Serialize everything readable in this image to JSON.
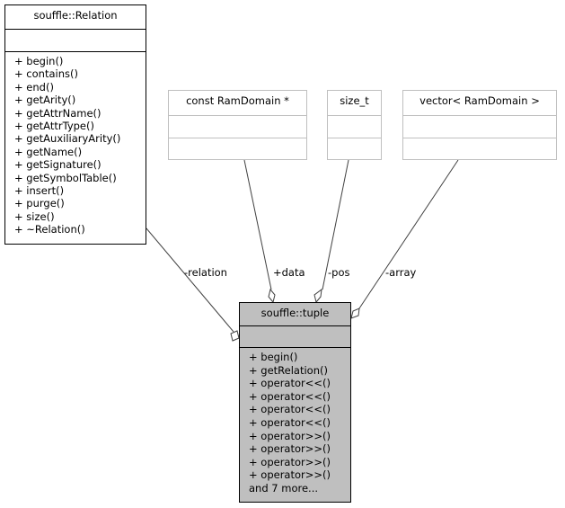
{
  "classes": {
    "relation": {
      "name": "souffle::Relation",
      "methods": [
        "+ begin()",
        "+ contains()",
        "+ end()",
        "+ getArity()",
        "+ getAttrName()",
        "+ getAttrType()",
        "+ getAuxiliaryArity()",
        "+ getName()",
        "+ getSignature()",
        "+ getSymbolTable()",
        "+ insert()",
        "+ purge()",
        "+ size()",
        "+ ~Relation()"
      ]
    },
    "ramdomain_ptr": {
      "name": "const RamDomain *"
    },
    "size_t": {
      "name": "size_t"
    },
    "vector": {
      "name": "vector< RamDomain >"
    },
    "tuple": {
      "name": "souffle::tuple",
      "methods": [
        "+ begin()",
        "+ getRelation()",
        "+ operator<<()",
        "+ operator<<()",
        "+ operator<<()",
        "+ operator<<()",
        "+ operator>>()",
        "+ operator>>()",
        "+ operator>>()",
        "+ operator>>()",
        "and 7 more..."
      ]
    }
  },
  "edges": {
    "relation": "-relation",
    "data": "+data",
    "pos": "-pos",
    "array": "-array"
  },
  "colors": {
    "line": "#404040",
    "muted_border": "#bfbfbf",
    "focus_fill": "#bfbfbf"
  }
}
